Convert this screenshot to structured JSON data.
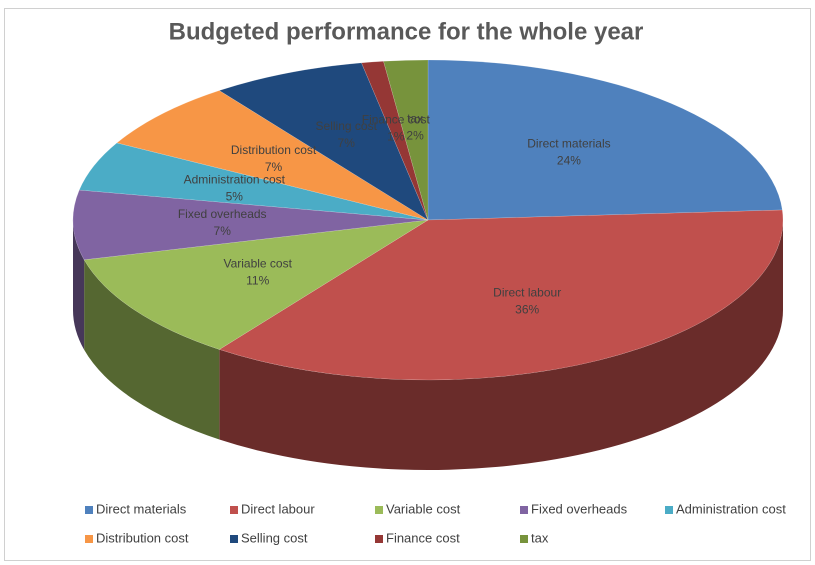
{
  "chart_data": {
    "type": "pie",
    "title": "Budgeted performance for the whole year",
    "categories": [
      "Direct materials",
      "Direct labour",
      "Variable cost",
      "Fixed overheads",
      "Administration cost",
      "Distribution cost",
      "Selling cost",
      "Finance cost",
      "tax"
    ],
    "values": [
      24,
      36,
      11,
      7,
      5,
      7,
      7,
      1,
      2
    ],
    "value_labels": [
      "24%",
      "36%",
      "11%",
      "7%",
      "5%",
      "7%",
      "7%",
      "1%",
      "2%"
    ],
    "colors": [
      "#4f81bd",
      "#c0504d",
      "#9bbb59",
      "#8064a2",
      "#4bacc6",
      "#f79646",
      "#1f497d",
      "#953735",
      "#77933c"
    ],
    "legend": "bottom"
  }
}
